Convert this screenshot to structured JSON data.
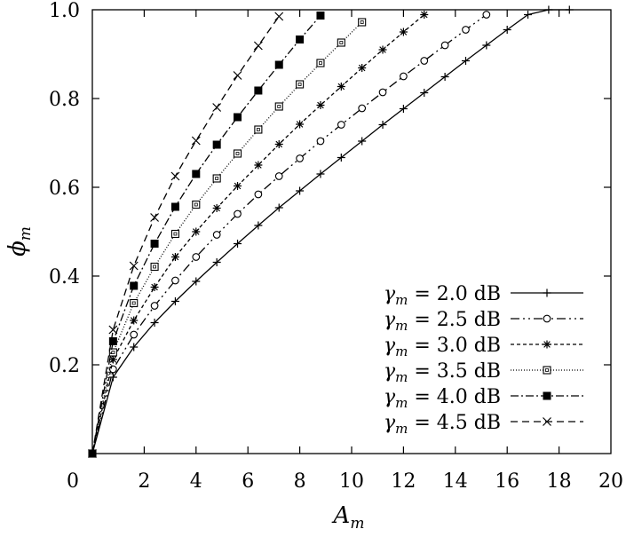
{
  "chart_data": {
    "type": "line",
    "xlabel": "A_m",
    "ylabel": "ϕ_m",
    "xlim": [
      0,
      20
    ],
    "ylim": [
      0,
      1.0
    ],
    "xticks": [
      "0",
      "2",
      "4",
      "6",
      "8",
      "10",
      "12",
      "14",
      "16",
      "18",
      "20"
    ],
    "yticks": [
      "0.2",
      "0.4",
      "0.6",
      "0.8",
      "1.0"
    ],
    "grid": false,
    "legend_position": "bottom-right",
    "series": [
      {
        "name": "γm = 2.0 dB",
        "gamma_db": 2.0,
        "marker": "plus",
        "dash": "",
        "x": [
          0.0,
          0.8,
          1.6,
          2.4,
          3.2,
          4.0,
          4.8,
          5.6,
          6.4,
          7.2,
          8.0,
          8.8,
          9.6,
          10.4,
          11.2,
          12.0,
          12.8,
          13.6,
          14.4,
          15.2,
          16.0,
          16.8,
          17.6,
          18.4
        ],
        "y": [
          0.0,
          0.172,
          0.24,
          0.295,
          0.343,
          0.388,
          0.431,
          0.473,
          0.514,
          0.554,
          0.592,
          0.63,
          0.667,
          0.704,
          0.741,
          0.777,
          0.813,
          0.849,
          0.885,
          0.92,
          0.955,
          0.989,
          1.0,
          1.0
        ]
      },
      {
        "name": "γm = 2.5 dB",
        "gamma_db": 2.5,
        "marker": "circle",
        "dash": "10,4,2,4,2,4",
        "x": [
          0.0,
          0.8,
          1.6,
          2.4,
          3.2,
          4.0,
          4.8,
          5.6,
          6.4,
          7.2,
          8.0,
          8.8,
          9.6,
          10.4,
          11.2,
          12.0,
          12.8,
          13.6,
          14.4,
          15.2
        ],
        "y": [
          0.0,
          0.19,
          0.268,
          0.333,
          0.39,
          0.443,
          0.493,
          0.54,
          0.584,
          0.625,
          0.665,
          0.704,
          0.741,
          0.778,
          0.814,
          0.85,
          0.885,
          0.92,
          0.955,
          0.989
        ]
      },
      {
        "name": "γm = 3.0 dB",
        "gamma_db": 3.0,
        "marker": "asterisk",
        "dash": "4,3",
        "x": [
          0.0,
          0.8,
          1.6,
          2.4,
          3.2,
          4.0,
          4.8,
          5.6,
          6.4,
          7.2,
          8.0,
          8.8,
          9.6,
          10.4,
          11.2,
          12.0,
          12.8
        ],
        "y": [
          0.0,
          0.212,
          0.3,
          0.375,
          0.443,
          0.5,
          0.553,
          0.603,
          0.65,
          0.697,
          0.742,
          0.785,
          0.827,
          0.869,
          0.91,
          0.95,
          0.989
        ]
      },
      {
        "name": "γm = 3.5 dB",
        "gamma_db": 3.5,
        "marker": "square-open",
        "dash": "1,2",
        "x": [
          0.0,
          0.8,
          1.6,
          2.4,
          3.2,
          4.0,
          4.8,
          5.6,
          6.4,
          7.2,
          8.0,
          8.8,
          9.6,
          10.4
        ],
        "y": [
          0.0,
          0.228,
          0.339,
          0.421,
          0.495,
          0.561,
          0.62,
          0.676,
          0.73,
          0.782,
          0.832,
          0.88,
          0.926,
          0.972
        ]
      },
      {
        "name": "γm = 4.0 dB",
        "gamma_db": 4.0,
        "marker": "square-filled",
        "dash": "9,3,2,3",
        "x": [
          0.0,
          0.8,
          1.6,
          2.4,
          3.2,
          4.0,
          4.8,
          5.6,
          6.4,
          7.2,
          8.0,
          8.8
        ],
        "y": [
          0.0,
          0.253,
          0.378,
          0.473,
          0.556,
          0.63,
          0.696,
          0.758,
          0.818,
          0.876,
          0.933,
          0.987
        ]
      },
      {
        "name": "γm = 4.5 dB",
        "gamma_db": 4.5,
        "marker": "cross",
        "dash": "8,5",
        "x": [
          0.0,
          0.8,
          1.6,
          2.4,
          3.2,
          4.0,
          4.8,
          5.6,
          6.4,
          7.2
        ],
        "y": [
          0.0,
          0.279,
          0.423,
          0.532,
          0.625,
          0.705,
          0.78,
          0.852,
          0.919,
          0.985
        ]
      }
    ]
  }
}
